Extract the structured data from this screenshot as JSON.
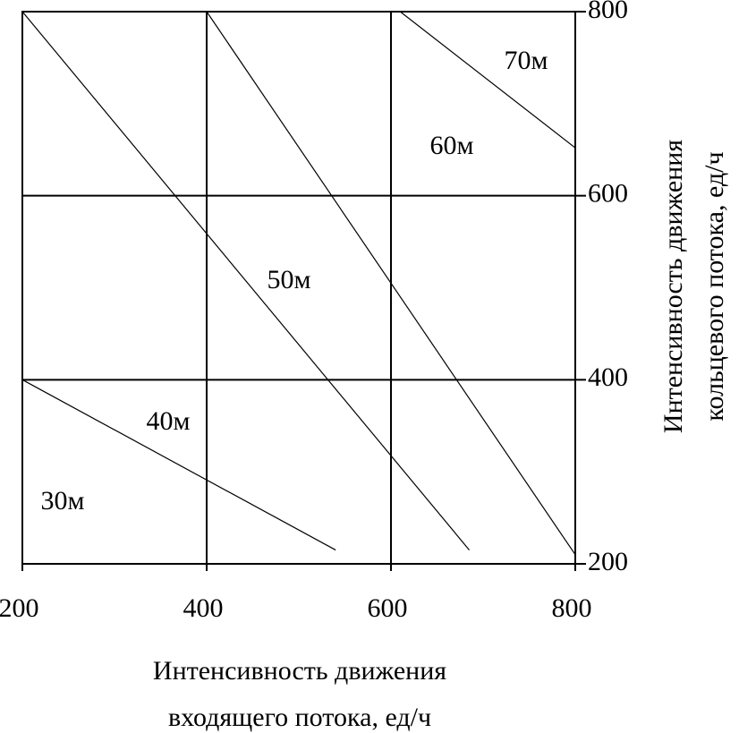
{
  "chart_data": {
    "type": "line",
    "x_title": [
      "Интенсивность движения",
      "входящего потока, ед/ч"
    ],
    "y_title": [
      "Интенсивность движения",
      "кольцевого потока, ед/ч"
    ],
    "xlim": [
      200,
      800
    ],
    "xticks": [
      200,
      400,
      600,
      800
    ],
    "ylim": [
      200,
      800
    ],
    "yticks": [
      200,
      400,
      600,
      800
    ],
    "y_axis_side": "right",
    "grid": true,
    "series": [
      {
        "color": "#000000",
        "x": [
          200,
          540
        ],
        "values": [
          400,
          215
        ]
      },
      {
        "color": "#000000",
        "x": [
          200,
          685
        ],
        "values": [
          800,
          215
        ]
      },
      {
        "color": "#000000",
        "x": [
          400,
          800
        ],
        "values": [
          800,
          210
        ]
      },
      {
        "color": "#000000",
        "x": [
          610,
          800
        ],
        "values": [
          800,
          652
        ]
      }
    ],
    "annotations": [
      "30м",
      "40м",
      "50м",
      "60м",
      "70м"
    ]
  }
}
